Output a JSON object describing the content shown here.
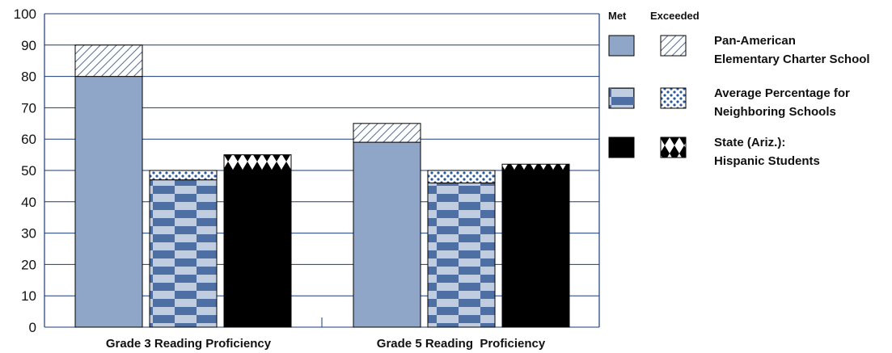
{
  "colors": {
    "pan_met": "#8fa6c8",
    "pan_exceeded_hatch": "#4e6fa3",
    "neighbor_check_dark": "#4e6fa3",
    "neighbor_check_light": "#c0cde0",
    "neighbor_dots": "#2a57a0",
    "state_met": "#000000",
    "axis_line": "#1a3b7a",
    "grid_line": "#1a3b7a"
  },
  "legend": {
    "met_header": "Met",
    "exceeded_header": "Exceeded",
    "items": [
      {
        "lines": [
          "Pan-American",
          "Elementary Charter School"
        ]
      },
      {
        "lines": [
          "Average Percentage for",
          "Neighboring Schools"
        ]
      },
      {
        "lines": [
          "State (Ariz.):",
          "Hispanic Students"
        ]
      }
    ]
  },
  "chart_data": {
    "type": "bar",
    "stacked": true,
    "title": "",
    "xlabel": "",
    "ylabel": "",
    "ylim": [
      0,
      100
    ],
    "yticks": [
      0,
      10,
      20,
      30,
      40,
      50,
      60,
      70,
      80,
      90,
      100
    ],
    "grid": true,
    "legend_placement": "right",
    "categories": [
      "Grade 3 Reading Proficiency",
      "Grade 5 Reading  Proficiency"
    ],
    "groups": [
      {
        "met": 80,
        "exceeded": 10
      },
      {
        "met": 47,
        "exceeded": 3
      },
      {
        "met": 50,
        "exceeded": 5
      },
      {
        "met": 59,
        "exceeded": 6
      },
      {
        "met": 46,
        "exceeded": 4
      },
      {
        "met": 50,
        "exceeded": 2
      }
    ]
  }
}
